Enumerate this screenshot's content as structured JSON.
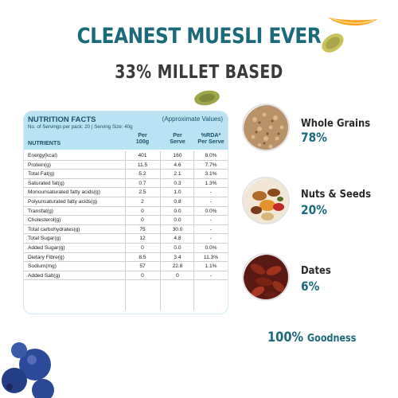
{
  "headline": "CLEANEST MUESLI EVER",
  "subhead": "33% MILLET BASED",
  "nutrition": {
    "title": "NUTRITION FACTS",
    "approx": "(Approximate Values)",
    "servings": "No. of Servings per pack: 20 | Serving Size: 40g",
    "col_nutrients": "NUTRIENTS",
    "col_per100_a": "Per",
    "col_per100_b": "100g",
    "col_serve_a": "Per",
    "col_serve_b": "Serve",
    "col_rda_a": "%RDA*",
    "col_rda_b": "Per Serve",
    "rows": [
      {
        "name": "Energy(kcal)",
        "p100": "401",
        "serve": "160",
        "rda": "8.0%"
      },
      {
        "name": "Protein(g)",
        "p100": "11.5",
        "serve": "4.6",
        "rda": "7.7%"
      },
      {
        "name": "Total Fat(g)",
        "p100": "5.2",
        "serve": "2.1",
        "rda": "3.1%"
      },
      {
        "name": "Saturated fat(g)",
        "p100": "0.7",
        "serve": "0.3",
        "rda": "1.3%"
      },
      {
        "name": "Monounsaturated fatty acids(g)",
        "p100": "2.5",
        "serve": "1.0",
        "rda": "-"
      },
      {
        "name": "Polyunsaturated fatty acids(g)",
        "p100": "2",
        "serve": "0.8",
        "rda": "-"
      },
      {
        "name": "Transfat(g)",
        "p100": "0",
        "serve": "0.0",
        "rda": "0.0%"
      },
      {
        "name": "Cholesterol(g)",
        "p100": "0",
        "serve": "0.0",
        "rda": "-"
      },
      {
        "name": "Total carbohydrates(g)",
        "p100": "75",
        "serve": "30.0",
        "rda": "-"
      },
      {
        "name": "Total Sugar(g)",
        "p100": "12",
        "serve": "4.8",
        "rda": "-"
      },
      {
        "name": "Added Sugar(g)",
        "p100": "0",
        "serve": "0.0",
        "rda": "0.0%"
      },
      {
        "name": "Dietary Fibre(g)",
        "p100": "8.5",
        "serve": "3.4",
        "rda": "11.3%"
      },
      {
        "name": "Sodium(mg)",
        "p100": "57",
        "serve": "22.8",
        "rda": "1.1%"
      },
      {
        "name": "Added Salt(g)",
        "p100": "0",
        "serve": "0",
        "rda": "-"
      }
    ]
  },
  "ingredients": [
    {
      "label": "Whole Grains",
      "pct": "78%"
    },
    {
      "label": "Nuts & Seeds",
      "pct": "20%"
    },
    {
      "label": "Dates",
      "pct": "6%"
    }
  ],
  "goodness": {
    "big": "100%",
    "small": "Goodness"
  },
  "colors": {
    "teal": "#1b6a7a",
    "panel_header": "#b9e3f3"
  }
}
